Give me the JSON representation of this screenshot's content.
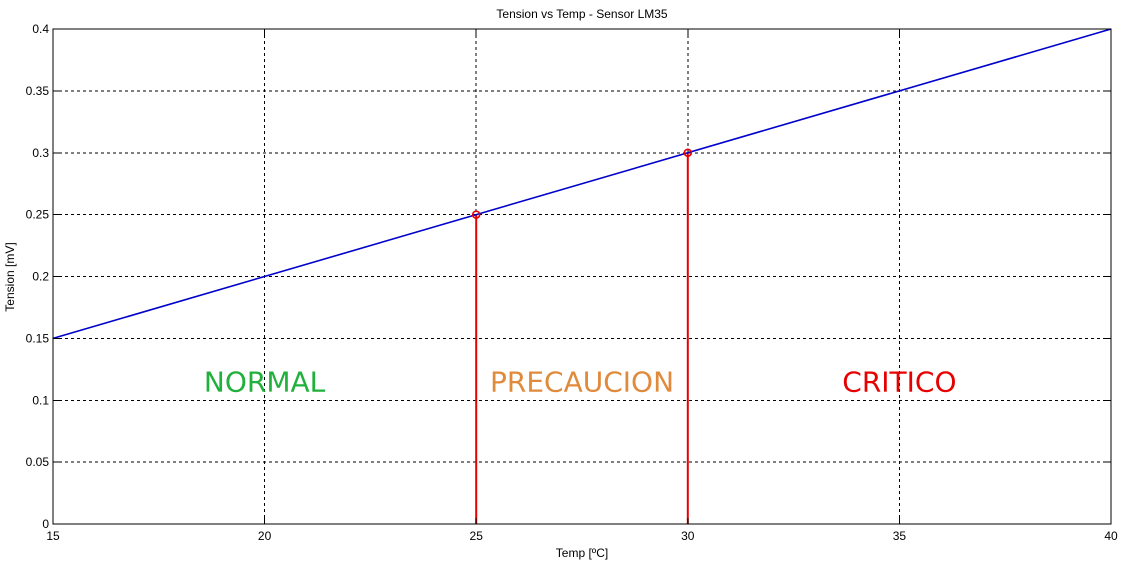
{
  "chart_data": {
    "type": "line",
    "title": "Tension vs Temp - Sensor LM35",
    "xlabel": "Temp [ºC]",
    "ylabel": "Tension [mV]",
    "xlim": [
      15,
      40
    ],
    "ylim": [
      0,
      0.4
    ],
    "xticks": [
      15,
      20,
      25,
      30,
      35,
      40
    ],
    "yticks": [
      0,
      0.05,
      0.1,
      0.15,
      0.2,
      0.25,
      0.3,
      0.35,
      0.4
    ],
    "grid": true,
    "series": [
      {
        "x": [
          15,
          40
        ],
        "y": [
          0.15,
          0.4
        ],
        "color": "#0000cc"
      }
    ],
    "markers": [
      {
        "x": 25,
        "y": 0.25,
        "color": "#e60000"
      },
      {
        "x": 30,
        "y": 0.3,
        "color": "#e60000"
      }
    ],
    "threshold_lines": [
      {
        "x": 25,
        "y": 0.25,
        "color": "#e60000"
      },
      {
        "x": 30,
        "y": 0.3,
        "color": "#e60000"
      }
    ],
    "annotations": [
      {
        "text": "NORMAL",
        "x": 20,
        "y": 0.115,
        "color": "#22b03c"
      },
      {
        "text": "PRECAUCION",
        "x": 27.5,
        "y": 0.115,
        "color": "#e08a3c"
      },
      {
        "text": "CRITICO",
        "x": 35,
        "y": 0.115,
        "color": "#e60000"
      }
    ]
  }
}
